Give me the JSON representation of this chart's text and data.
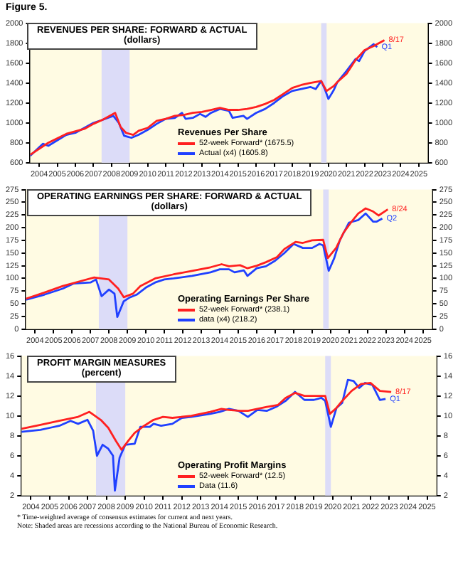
{
  "chart_data": [
    {
      "type": "line",
      "title": "REVENUES PER SHARE: FORWARD & ACTUAL",
      "subtitle": "(dollars)",
      "legend_title": "Revenues Per Share",
      "legend": "bottom",
      "grid": false,
      "marker": "none",
      "line_style": "solid",
      "annotations": [
        "Figure 5.",
        {
          "text": "8/17",
          "x": 2023.6,
          "y": 1830
        },
        {
          "text": "Q1",
          "x": 2023.2,
          "y": 1760
        }
      ],
      "xlim": [
        2004,
        2026
      ],
      "xticks": [
        {
          "value": 2004.5,
          "label": "2004"
        },
        {
          "value": 2005.5,
          "label": "2005"
        },
        {
          "value": 2006.5,
          "label": "2006"
        },
        {
          "value": 2007.5,
          "label": "2007"
        },
        {
          "value": 2008.5,
          "label": "2008"
        },
        {
          "value": 2009.5,
          "label": "2009"
        },
        {
          "value": 2010.5,
          "label": "2010"
        },
        {
          "value": 2011.5,
          "label": "2011"
        },
        {
          "value": 2012.5,
          "label": "2012"
        },
        {
          "value": 2013.5,
          "label": "2013"
        },
        {
          "value": 2014.5,
          "label": "2014"
        },
        {
          "value": 2015.5,
          "label": "2015"
        },
        {
          "value": 2016.5,
          "label": "2016"
        },
        {
          "value": 2017.5,
          "label": "2017"
        },
        {
          "value": 2018.5,
          "label": "2018"
        },
        {
          "value": 2019.5,
          "label": "2019"
        },
        {
          "value": 2020.5,
          "label": "2020"
        },
        {
          "value": 2021.5,
          "label": "2021"
        },
        {
          "value": 2022.5,
          "label": "2022"
        },
        {
          "value": 2023.5,
          "label": "2023"
        },
        {
          "value": 2024.5,
          "label": "2024"
        },
        {
          "value": 2025.5,
          "label": "2025"
        }
      ],
      "ylim": [
        600,
        2000
      ],
      "yticks": [
        600,
        800,
        1000,
        1200,
        1400,
        1600,
        1800,
        2000
      ],
      "y2lim": [
        600,
        2000
      ],
      "y2ticks": [
        600,
        800,
        1000,
        1200,
        1400,
        1600,
        1800,
        2000
      ],
      "bands": [
        {
          "axis": "x",
          "from": 2007.95,
          "to": 2009.5,
          "color": "#dcdcf8"
        },
        {
          "axis": "x",
          "from": 2020.1,
          "to": 2020.4,
          "color": "#dcdcf8"
        }
      ],
      "series": [
        {
          "name": "52-week Forward* (1675.5)",
          "color": "#ff2020",
          "x": [
            2004,
            2005,
            2006,
            2007,
            2007.5,
            2008,
            2008.7,
            2009,
            2009.3,
            2009.7,
            2010,
            2010.5,
            2011,
            2011.5,
            2012,
            2012.5,
            2013,
            2013.5,
            2014,
            2014.5,
            2015,
            2015.5,
            2016,
            2016.5,
            2017,
            2017.5,
            2018,
            2018.5,
            2019,
            2019.5,
            2020.1,
            2020.4,
            2020.8,
            2021,
            2021.5,
            2022,
            2022.5,
            2023,
            2023.6
          ],
          "values": [
            680,
            800,
            890,
            940,
            990,
            1030,
            1100,
            960,
            900,
            880,
            920,
            950,
            1020,
            1040,
            1070,
            1080,
            1100,
            1110,
            1130,
            1150,
            1130,
            1130,
            1140,
            1160,
            1190,
            1230,
            1290,
            1350,
            1380,
            1400,
            1420,
            1320,
            1370,
            1410,
            1490,
            1630,
            1730,
            1770,
            1830
          ]
        },
        {
          "name": "Actual (x4) (1605.8)",
          "color": "#2040ff",
          "x": [
            2004,
            2004.7,
            2005,
            2006,
            2006.5,
            2007,
            2007.5,
            2008,
            2008.6,
            2008.9,
            2009.2,
            2009.6,
            2010,
            2010.5,
            2011,
            2011.5,
            2012,
            2012.4,
            2012.6,
            2013,
            2013.4,
            2013.7,
            2014,
            2014.5,
            2015,
            2015.2,
            2015.8,
            2016,
            2016.5,
            2017,
            2017.5,
            2018,
            2018.5,
            2019,
            2019.5,
            2019.8,
            2020.1,
            2020.3,
            2020.5,
            2020.8,
            2021,
            2021.5,
            2022,
            2022.2,
            2022.5,
            2023,
            2023.2
          ],
          "values": [
            670,
            790,
            770,
            880,
            900,
            950,
            1000,
            1030,
            1070,
            1000,
            870,
            850,
            880,
            930,
            990,
            1040,
            1050,
            1100,
            1040,
            1050,
            1090,
            1060,
            1100,
            1140,
            1120,
            1050,
            1070,
            1040,
            1100,
            1140,
            1200,
            1270,
            1320,
            1340,
            1360,
            1340,
            1420,
            1340,
            1240,
            1330,
            1410,
            1520,
            1640,
            1620,
            1720,
            1790,
            1760
          ]
        }
      ]
    },
    {
      "type": "line",
      "title": "OPERATING EARNINGS PER SHARE: FORWARD & ACTUAL",
      "subtitle": "(dollars)",
      "legend_title": "Operating Earnings Per Share",
      "legend": "bottom",
      "grid": false,
      "marker": "none",
      "line_style": "solid",
      "annotations": [
        {
          "text": "8/24",
          "x": 2023.6,
          "y": 236
        },
        {
          "text": "Q2",
          "x": 2023.3,
          "y": 218
        }
      ],
      "xlim": [
        2004,
        2026
      ],
      "xticks": [
        {
          "value": 2004.5,
          "label": "2004"
        },
        {
          "value": 2005.5,
          "label": "2005"
        },
        {
          "value": 2006.5,
          "label": "2006"
        },
        {
          "value": 2007.5,
          "label": "2007"
        },
        {
          "value": 2008.5,
          "label": "2008"
        },
        {
          "value": 2009.5,
          "label": "2009"
        },
        {
          "value": 2010.5,
          "label": "2010"
        },
        {
          "value": 2011.5,
          "label": "2011"
        },
        {
          "value": 2012.5,
          "label": "2012"
        },
        {
          "value": 2013.5,
          "label": "2013"
        },
        {
          "value": 2014.5,
          "label": "2014"
        },
        {
          "value": 2015.5,
          "label": "2015"
        },
        {
          "value": 2016.5,
          "label": "2016"
        },
        {
          "value": 2017.5,
          "label": "2017"
        },
        {
          "value": 2018.5,
          "label": "2018"
        },
        {
          "value": 2019.5,
          "label": "2019"
        },
        {
          "value": 2020.5,
          "label": "2020"
        },
        {
          "value": 2021.5,
          "label": "2021"
        },
        {
          "value": 2022.5,
          "label": "2022"
        },
        {
          "value": 2023.5,
          "label": "2023"
        },
        {
          "value": 2024.5,
          "label": "2024"
        },
        {
          "value": 2025.5,
          "label": "2025"
        }
      ],
      "ylim": [
        0,
        275
      ],
      "yticks": [
        0,
        25,
        50,
        75,
        100,
        125,
        150,
        175,
        200,
        225,
        250,
        275
      ],
      "y2lim": [
        0,
        275
      ],
      "y2ticks": [
        0,
        25,
        50,
        75,
        100,
        125,
        150,
        175,
        200,
        225,
        250,
        275
      ],
      "bands": [
        {
          "axis": "x",
          "from": 2007.95,
          "to": 2009.5,
          "color": "#dcdcf8"
        },
        {
          "axis": "x",
          "from": 2020.1,
          "to": 2020.4,
          "color": "#dcdcf8"
        }
      ],
      "series": [
        {
          "name": "52-week Forward* (238.1)",
          "color": "#ff2020",
          "x": [
            2004,
            2005,
            2006,
            2007,
            2007.7,
            2008.5,
            2009,
            2009.3,
            2009.8,
            2010.2,
            2011,
            2012,
            2013,
            2014,
            2014.6,
            2015,
            2015.6,
            2016,
            2016.5,
            2017,
            2017.6,
            2018,
            2018.6,
            2019,
            2019.5,
            2020.1,
            2020.35,
            2020.8,
            2021.2,
            2021.6,
            2022,
            2022.4,
            2022.8,
            2023.1,
            2023.6
          ],
          "values": [
            60,
            72,
            85,
            95,
            102,
            98,
            80,
            63,
            70,
            85,
            100,
            108,
            115,
            122,
            128,
            124,
            126,
            120,
            125,
            132,
            142,
            158,
            172,
            170,
            175,
            176,
            140,
            160,
            190,
            210,
            228,
            238,
            232,
            224,
            236
          ]
        },
        {
          "name": "data (x4) (218.2)",
          "color": "#2040ff",
          "x": [
            2004,
            2005,
            2006,
            2006.6,
            2007.5,
            2007.8,
            2008.1,
            2008.5,
            2008.8,
            2008.95,
            2009.3,
            2009.6,
            2010,
            2010.5,
            2011,
            2011.5,
            2012,
            2013,
            2014,
            2014.5,
            2015,
            2015.3,
            2015.8,
            2016,
            2016.5,
            2017,
            2017.5,
            2018,
            2018.5,
            2019,
            2019.5,
            2019.9,
            2020.1,
            2020.4,
            2020.7,
            2021,
            2021.5,
            2022,
            2022.4,
            2022.8,
            2023,
            2023.3
          ],
          "values": [
            58,
            68,
            80,
            90,
            92,
            98,
            65,
            78,
            70,
            24,
            55,
            62,
            68,
            82,
            92,
            98,
            100,
            105,
            112,
            118,
            118,
            112,
            116,
            105,
            120,
            124,
            135,
            150,
            168,
            160,
            160,
            168,
            165,
            115,
            140,
            175,
            210,
            215,
            228,
            212,
            212,
            218
          ]
        }
      ]
    },
    {
      "type": "line",
      "title": "PROFIT MARGIN MEASURES",
      "subtitle": "(percent)",
      "legend_title": "Operating Profit Margins",
      "legend": "bottom",
      "grid": false,
      "marker": "none",
      "line_style": "solid",
      "annotations": [
        {
          "text": "8/17",
          "x": 2023.6,
          "y": 12.4
        },
        {
          "text": "Q1",
          "x": 2023.3,
          "y": 11.7
        },
        "* Time-weighted average of consensus estimates for current and next years.",
        "Note: Shaded areas are recessions according to the National Bureau of Economic Research."
      ],
      "xlim": [
        2004,
        2026
      ],
      "xticks": [
        {
          "value": 2004.5,
          "label": "2004"
        },
        {
          "value": 2005.5,
          "label": "2005"
        },
        {
          "value": 2006.5,
          "label": "2006"
        },
        {
          "value": 2007.5,
          "label": "2007"
        },
        {
          "value": 2008.5,
          "label": "2008"
        },
        {
          "value": 2009.5,
          "label": "2009"
        },
        {
          "value": 2010.5,
          "label": "2010"
        },
        {
          "value": 2011.5,
          "label": "2011"
        },
        {
          "value": 2012.5,
          "label": "2012"
        },
        {
          "value": 2013.5,
          "label": "2013"
        },
        {
          "value": 2014.5,
          "label": "2014"
        },
        {
          "value": 2015.5,
          "label": "2015"
        },
        {
          "value": 2016.5,
          "label": "2016"
        },
        {
          "value": 2017.5,
          "label": "2017"
        },
        {
          "value": 2018.5,
          "label": "2018"
        },
        {
          "value": 2019.5,
          "label": "2019"
        },
        {
          "value": 2020.5,
          "label": "2020"
        },
        {
          "value": 2021.5,
          "label": "2021"
        },
        {
          "value": 2022.5,
          "label": "2022"
        },
        {
          "value": 2023.5,
          "label": "2023"
        },
        {
          "value": 2024.5,
          "label": "2024"
        },
        {
          "value": 2025.5,
          "label": "2025"
        }
      ],
      "ylim": [
        2,
        16
      ],
      "yticks": [
        2,
        4,
        6,
        8,
        10,
        12,
        14,
        16
      ],
      "y2lim": [
        2,
        16
      ],
      "y2ticks": [
        2,
        4,
        6,
        8,
        10,
        12,
        14,
        16
      ],
      "bands": [
        {
          "axis": "x",
          "from": 2007.95,
          "to": 2009.5,
          "color": "#dcdcf8"
        },
        {
          "axis": "x",
          "from": 2020.1,
          "to": 2020.4,
          "color": "#dcdcf8"
        }
      ],
      "series": [
        {
          "name": "52-week Forward* (12.5)",
          "color": "#ff2020",
          "x": [
            2004,
            2005,
            2006,
            2007,
            2007.6,
            2008.2,
            2008.6,
            2009,
            2009.3,
            2009.7,
            2010,
            2010.5,
            2011,
            2011.5,
            2012,
            2013,
            2014,
            2014.6,
            2015,
            2015.6,
            2016,
            2016.5,
            2017,
            2017.6,
            2018,
            2018.5,
            2019,
            2019.5,
            2020.1,
            2020.35,
            2020.7,
            2021,
            2021.5,
            2022,
            2022.5,
            2023,
            2023.6
          ],
          "values": [
            8.7,
            9.1,
            9.5,
            9.9,
            10.4,
            9.6,
            8.8,
            7.5,
            6.6,
            7.6,
            8.3,
            9.0,
            9.6,
            9.9,
            9.8,
            10.0,
            10.4,
            10.7,
            10.6,
            10.5,
            10.5,
            10.7,
            10.9,
            11.1,
            11.8,
            12.3,
            12.0,
            12.0,
            12.0,
            10.2,
            10.8,
            11.5,
            12.5,
            13.2,
            13.3,
            12.5,
            12.4
          ]
        },
        {
          "name": "Data (11.6)",
          "color": "#2040ff",
          "x": [
            2004,
            2005,
            2005.5,
            2006,
            2006.6,
            2007,
            2007.5,
            2007.8,
            2008,
            2008.3,
            2008.6,
            2008.85,
            2008.95,
            2009.2,
            2009.5,
            2010,
            2010.3,
            2010.8,
            2011,
            2011.4,
            2012,
            2012.5,
            2013,
            2014,
            2014.5,
            2015,
            2015.5,
            2016,
            2016.5,
            2017,
            2017.5,
            2018,
            2018.5,
            2019,
            2019.5,
            2019.9,
            2020.1,
            2020.4,
            2020.7,
            2021,
            2021.3,
            2021.6,
            2021.9,
            2022.2,
            2022.6,
            2023,
            2023.3
          ],
          "values": [
            8.4,
            8.6,
            8.8,
            9.0,
            9.5,
            9.2,
            9.6,
            8.5,
            6.0,
            7.1,
            6.7,
            6.0,
            2.5,
            5.8,
            7.1,
            7.2,
            8.9,
            8.9,
            9.2,
            9.0,
            9.2,
            9.8,
            9.9,
            10.2,
            10.4,
            10.7,
            10.5,
            9.9,
            10.6,
            10.5,
            10.9,
            11.5,
            12.4,
            11.6,
            11.6,
            11.8,
            11.5,
            8.9,
            10.8,
            11.3,
            13.6,
            13.5,
            12.8,
            13.3,
            13.1,
            11.6,
            11.7
          ]
        }
      ]
    }
  ]
}
